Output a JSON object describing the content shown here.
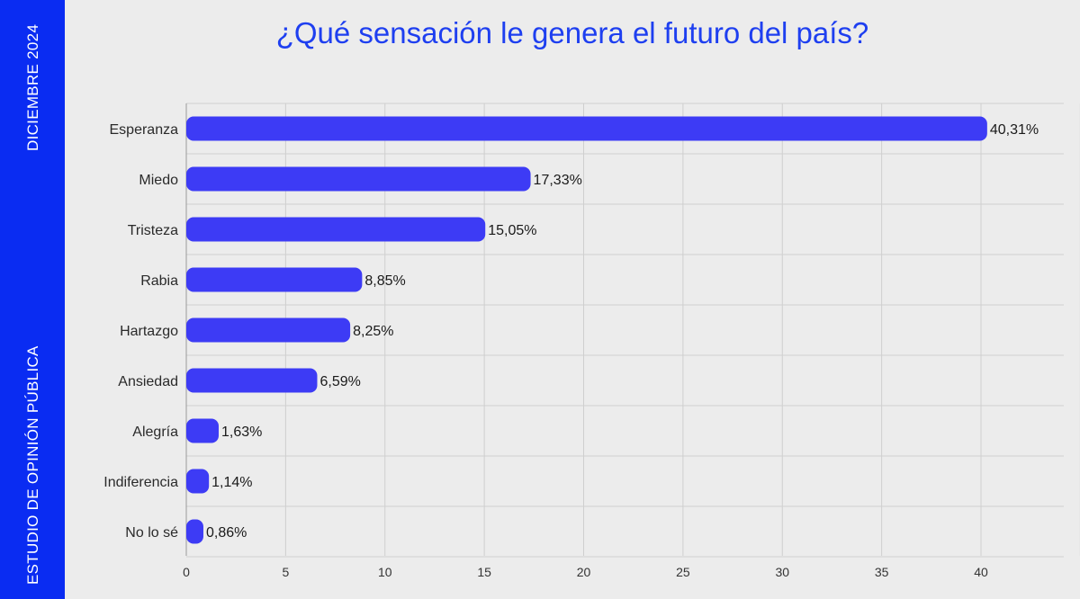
{
  "side": {
    "date": "DICIEMBRE 2024",
    "study": "ESTUDIO DE OPINIÓN PÚBLICA"
  },
  "colors": {
    "band": "#0a2cf2",
    "bar": "#3d3bf5",
    "title": "#1e3ff0",
    "grid": "#cfcfcf"
  },
  "chart_data": {
    "type": "bar",
    "orientation": "horizontal",
    "title": "¿Qué sensación le genera el futuro del país?",
    "categories": [
      "Esperanza",
      "Miedo",
      "Tristeza",
      "Rabia",
      "Hartazgo",
      "Ansiedad",
      "Alegría",
      "Indiferencia",
      "No lo sé"
    ],
    "values": [
      40.31,
      17.33,
      15.05,
      8.85,
      8.25,
      6.59,
      1.63,
      1.14,
      0.86
    ],
    "value_labels": [
      "40,31%",
      "17,33%",
      "15,05%",
      "8,85%",
      "8,25%",
      "6,59%",
      "1,63%",
      "1,14%",
      "0,86%"
    ],
    "xticks": [
      0,
      5,
      10,
      15,
      20,
      25,
      30,
      35,
      40
    ],
    "xlim": [
      0,
      45
    ],
    "grid": true,
    "xlabel": "",
    "ylabel": ""
  }
}
